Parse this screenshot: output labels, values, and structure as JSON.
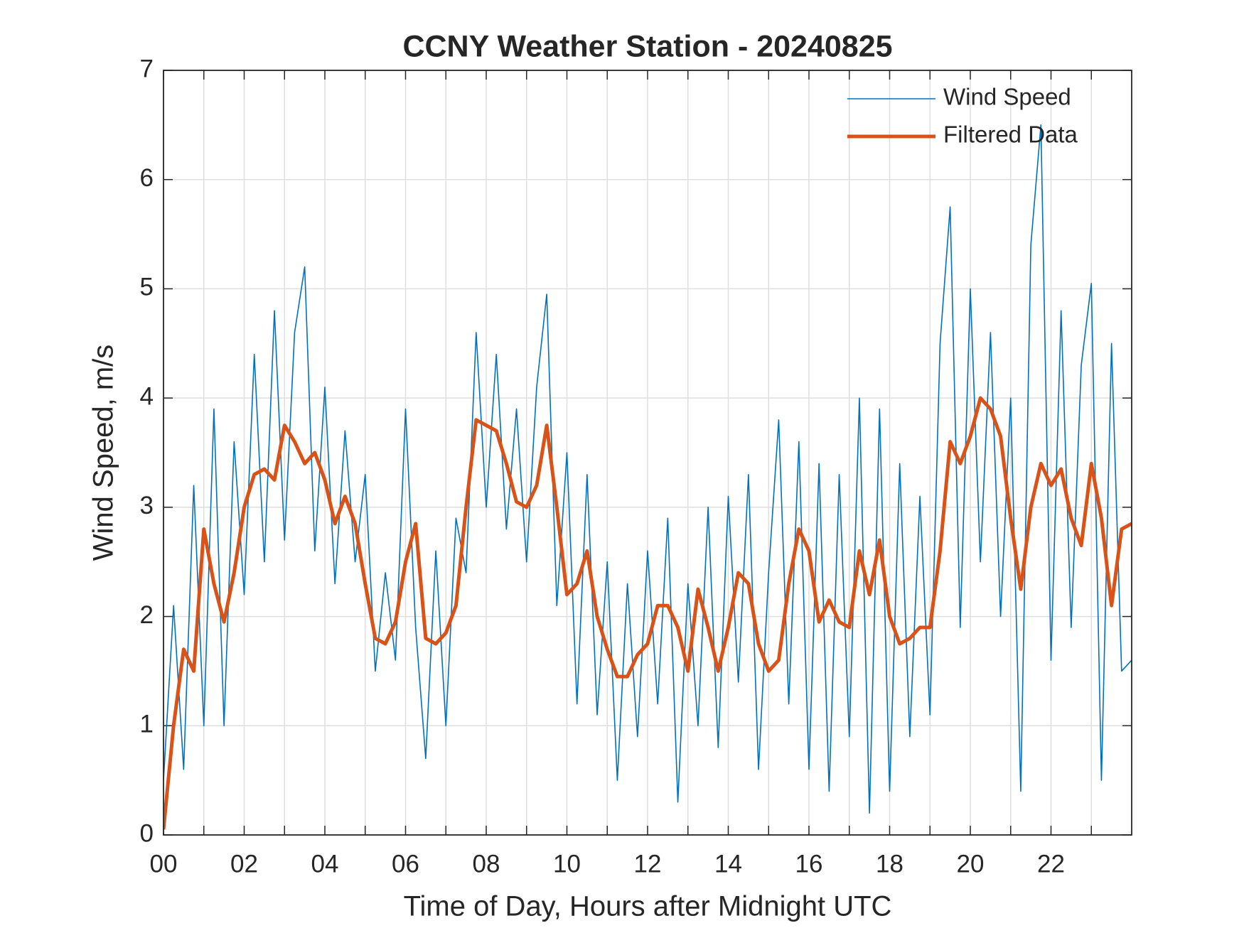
{
  "chart_data": {
    "type": "line",
    "title": "CCNY Weather Station - 20240825",
    "xlabel": "Time of Day, Hours after Midnight UTC",
    "ylabel": "Wind Speed, m/s",
    "x": [
      0,
      0.25,
      0.5,
      0.75,
      1,
      1.25,
      1.5,
      1.75,
      2,
      2.25,
      2.5,
      2.75,
      3,
      3.25,
      3.5,
      3.75,
      4,
      4.25,
      4.5,
      4.75,
      5,
      5.25,
      5.5,
      5.75,
      6,
      6.25,
      6.5,
      6.75,
      7,
      7.25,
      7.5,
      7.75,
      8,
      8.25,
      8.5,
      8.75,
      9,
      9.25,
      9.5,
      9.75,
      10,
      10.25,
      10.5,
      10.75,
      11,
      11.25,
      11.5,
      11.75,
      12,
      12.25,
      12.5,
      12.75,
      13,
      13.25,
      13.5,
      13.75,
      14,
      14.25,
      14.5,
      14.75,
      15,
      15.25,
      15.5,
      15.75,
      16,
      16.25,
      16.5,
      16.75,
      17,
      17.25,
      17.5,
      17.75,
      18,
      18.25,
      18.5,
      18.75,
      19,
      19.25,
      19.5,
      19.75,
      20,
      20.25,
      20.5,
      20.75,
      21,
      21.25,
      21.5,
      21.75,
      22,
      22.25,
      22.5,
      22.75,
      23,
      23.25,
      23.5,
      23.75,
      24
    ],
    "series": [
      {
        "name": "Wind Speed",
        "color": "#0072BD",
        "width": 1.6,
        "values": [
          0.5,
          2.1,
          0.6,
          3.2,
          1.0,
          3.9,
          1.0,
          3.6,
          2.2,
          4.4,
          2.5,
          4.8,
          2.7,
          4.6,
          5.2,
          2.6,
          4.1,
          2.3,
          3.7,
          2.5,
          3.3,
          1.5,
          2.4,
          1.6,
          3.9,
          1.9,
          0.7,
          2.6,
          1.0,
          2.9,
          2.4,
          4.6,
          3.0,
          4.4,
          2.8,
          3.9,
          2.5,
          4.1,
          4.95,
          2.1,
          3.5,
          1.2,
          3.3,
          1.1,
          2.5,
          0.5,
          2.3,
          0.9,
          2.6,
          1.2,
          2.9,
          0.3,
          2.3,
          1.0,
          3.0,
          0.8,
          3.1,
          1.4,
          3.3,
          0.6,
          2.4,
          3.8,
          1.2,
          3.6,
          0.6,
          3.4,
          0.4,
          3.3,
          0.9,
          4.0,
          0.2,
          3.9,
          0.4,
          3.4,
          0.9,
          3.1,
          1.1,
          4.5,
          5.75,
          1.9,
          5.0,
          2.5,
          4.6,
          2.0,
          4.0,
          0.4,
          5.4,
          6.5,
          1.6,
          4.8,
          1.9,
          4.3,
          5.05,
          0.5,
          4.5,
          1.5,
          1.6
        ]
      },
      {
        "name": "Filtered Data",
        "color": "#D95319",
        "width": 5,
        "values": [
          0.05,
          1.0,
          1.7,
          1.5,
          2.8,
          2.3,
          1.95,
          2.4,
          3.0,
          3.3,
          3.35,
          3.25,
          3.75,
          3.6,
          3.4,
          3.5,
          3.25,
          2.85,
          3.1,
          2.85,
          2.3,
          1.8,
          1.75,
          1.95,
          2.5,
          2.85,
          1.8,
          1.75,
          1.85,
          2.1,
          3.0,
          3.8,
          3.75,
          3.7,
          3.4,
          3.05,
          3.0,
          3.2,
          3.75,
          3.0,
          2.2,
          2.3,
          2.6,
          2.0,
          1.7,
          1.45,
          1.45,
          1.65,
          1.75,
          2.1,
          2.1,
          1.9,
          1.5,
          2.25,
          1.9,
          1.5,
          1.9,
          2.4,
          2.3,
          1.75,
          1.5,
          1.6,
          2.3,
          2.8,
          2.6,
          1.95,
          2.15,
          1.95,
          1.9,
          2.6,
          2.2,
          2.7,
          2.0,
          1.75,
          1.8,
          1.9,
          1.9,
          2.6,
          3.6,
          3.4,
          3.65,
          4.0,
          3.9,
          3.65,
          2.9,
          2.25,
          3.0,
          3.4,
          3.2,
          3.35,
          2.9,
          2.65,
          3.4,
          2.9,
          2.1,
          2.8,
          2.85
        ]
      }
    ],
    "xlim": [
      0,
      24
    ],
    "xticks": [
      {
        "value": 0,
        "label": "00"
      },
      {
        "value": 2,
        "label": "02"
      },
      {
        "value": 4,
        "label": "04"
      },
      {
        "value": 6,
        "label": "06"
      },
      {
        "value": 8,
        "label": "08"
      },
      {
        "value": 10,
        "label": "10"
      },
      {
        "value": 12,
        "label": "12"
      },
      {
        "value": 14,
        "label": "14"
      },
      {
        "value": 16,
        "label": "16"
      },
      {
        "value": 18,
        "label": "18"
      },
      {
        "value": 20,
        "label": "20"
      },
      {
        "value": 22,
        "label": "22"
      }
    ],
    "xminor_ticks": [
      1,
      3,
      5,
      7,
      9,
      11,
      13,
      15,
      17,
      19,
      21,
      23
    ],
    "ylim": [
      0,
      7
    ],
    "yticks": [
      0,
      1,
      2,
      3,
      4,
      5,
      6,
      7
    ],
    "grid": true,
    "legend": "northeast"
  }
}
